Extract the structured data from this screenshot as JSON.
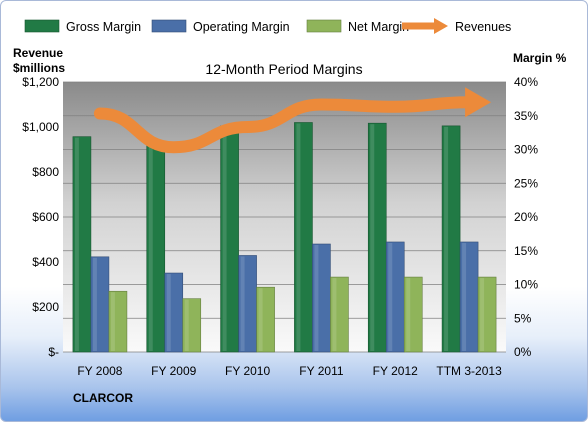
{
  "chart_data": {
    "type": "bar",
    "title": "12-Month Period Margins",
    "company": "CLARCOR",
    "y_left_label_line1": "Revenue",
    "y_left_label_line2": "$millions",
    "y_right_label": "Margin %",
    "categories": [
      "FY 2008",
      "FY 2009",
      "FY 2010",
      "FY 2011",
      "FY 2012",
      "TTM 3-2013"
    ],
    "y_left_ticks": [
      "$-",
      "$200",
      "$400",
      "$600",
      "$800",
      "$1,000",
      "$1,200"
    ],
    "y_right_ticks": [
      "0%",
      "5%",
      "10%",
      "15%",
      "20%",
      "25%",
      "30%",
      "35%",
      "40%"
    ],
    "ylim_left": [
      0,
      1200
    ],
    "ylim_right": [
      0,
      40
    ],
    "grid": true,
    "legend_position": "top",
    "series": [
      {
        "name": "Gross Margin",
        "axis": "right",
        "color": "#217a45",
        "values": [
          31.9,
          30.8,
          33.5,
          34.0,
          33.9,
          33.5
        ]
      },
      {
        "name": "Operating Margin",
        "axis": "right",
        "color": "#4a6fa8",
        "values": [
          14.1,
          11.7,
          14.3,
          16.0,
          16.3,
          16.3
        ]
      },
      {
        "name": "Net Margin",
        "axis": "right",
        "color": "#8fb45a",
        "values": [
          9.0,
          7.9,
          9.6,
          11.1,
          11.1,
          11.1
        ]
      },
      {
        "name": "Revenues",
        "axis": "left",
        "type": "line",
        "color": "#ec8a3a",
        "values": [
          1060,
          910,
          1000,
          1100,
          1090,
          1110
        ]
      }
    ]
  }
}
